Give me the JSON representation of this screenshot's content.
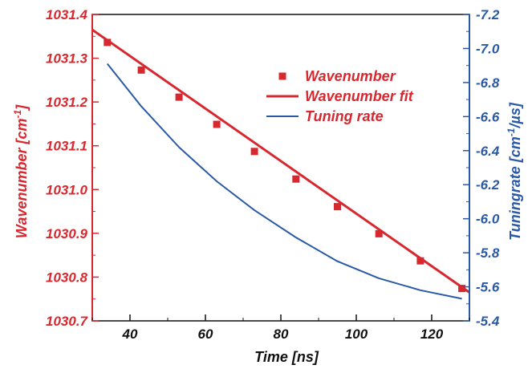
{
  "chart_data": {
    "type": "line",
    "xlabel": "Time [ns]",
    "ylabel_left": "Wavenumber  [cm",
    "ylabel_left_sup": "-1",
    "ylabel_left_end": "]",
    "ylabel_right": "Tuningrate  [cm",
    "ylabel_right_sup": "-1",
    "ylabel_right_end": "/µs]",
    "xlim": [
      30,
      130
    ],
    "ylim_left": [
      1030.7,
      1031.4
    ],
    "ylim_right": [
      -5.4,
      -7.2
    ],
    "x_ticks": [
      40,
      60,
      80,
      100,
      120
    ],
    "x_tick_labels": [
      "40",
      "60",
      "80",
      "100",
      "120"
    ],
    "y_left_ticks": [
      1030.7,
      1030.8,
      1030.9,
      1031.0,
      1031.1,
      1031.2,
      1031.3,
      1031.4
    ],
    "y_left_tick_labels": [
      "1030.7",
      "1030.8",
      "1030.9",
      "1031.0",
      "1031.1",
      "1031.2",
      "1031.3",
      "1031.4"
    ],
    "y_right_ticks": [
      -5.4,
      -5.6,
      -5.8,
      -6.0,
      -6.2,
      -6.4,
      -6.6,
      -6.8,
      -7.0,
      -7.2
    ],
    "y_right_tick_labels": [
      "-5.4",
      "-5.6",
      "-5.8",
      "-6.0",
      "-6.2",
      "-6.4",
      "-6.6",
      "-6.8",
      "-7.0",
      "-7.2"
    ],
    "grid": false,
    "legend_position": "top-right",
    "colors": {
      "wavenumber": "#d7282f",
      "tuning": "#2a5aa6",
      "axis": "#111111"
    },
    "series": [
      {
        "name": "Wavenumber",
        "axis": "left",
        "style": "markers",
        "x": [
          34,
          43,
          53,
          63,
          73,
          84,
          95,
          106,
          117,
          128
        ],
        "y": [
          1031.336,
          1031.273,
          1031.211,
          1031.149,
          1031.087,
          1031.024,
          1030.961,
          1030.899,
          1030.837,
          1030.774
        ]
      },
      {
        "name": "Wavenumber fit",
        "axis": "left",
        "style": "line",
        "x": [
          30,
          130
        ],
        "y": [
          1031.365,
          1030.765
        ]
      },
      {
        "name": "Tuning rate",
        "axis": "right",
        "style": "line",
        "x": [
          34,
          43,
          53,
          63,
          73,
          84,
          95,
          106,
          117,
          128
        ],
        "y": [
          -6.91,
          -6.66,
          -6.42,
          -6.22,
          -6.05,
          -5.89,
          -5.75,
          -5.65,
          -5.58,
          -5.53
        ]
      }
    ]
  }
}
